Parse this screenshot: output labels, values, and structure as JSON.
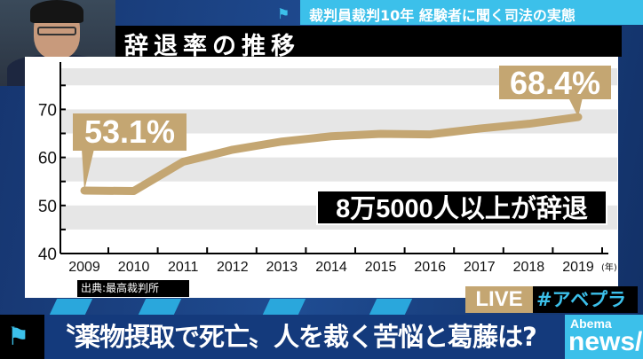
{
  "header": {
    "topic": "裁判員裁判10年  経験者に聞く司法の実態",
    "chart_title": "辞退率の推移"
  },
  "chart_data": {
    "type": "line",
    "title": "辞退率の推移",
    "x": [
      "2009",
      "2010",
      "2011",
      "2012",
      "2013",
      "2014",
      "2015",
      "2016",
      "2017",
      "2018",
      "2019"
    ],
    "x_unit": "(年)",
    "values": [
      53.1,
      53.0,
      59.1,
      61.6,
      63.3,
      64.4,
      64.9,
      64.8,
      66.0,
      67.0,
      68.4
    ],
    "yticks": [
      40,
      50,
      60,
      70
    ],
    "ylim": [
      40,
      78
    ],
    "grid": "alternating horizontal bands",
    "line_color": "#c4a672",
    "annotations": {
      "start": "53.1%",
      "end": "68.4%",
      "note": "8万5000人以上が辞退"
    },
    "source": "出典:最高裁判所"
  },
  "overlay": {
    "live": "LIVE",
    "hashtag": "#アベプラ"
  },
  "ticker": {
    "headline": "〝薬物摂取で死亡〟人を裁く苦悩と葛藤は?"
  },
  "logo": {
    "line1": "Abema",
    "line2": "news/"
  },
  "colors": {
    "accent": "#3cc0ea",
    "gold": "#c4a672",
    "navy": "#143a7c"
  }
}
